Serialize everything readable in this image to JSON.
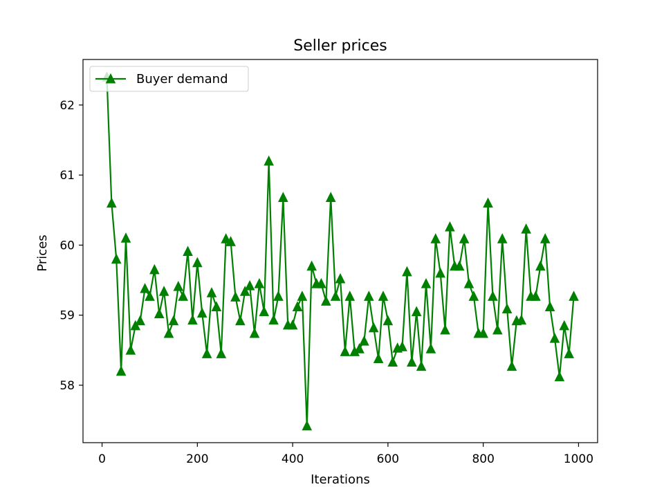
{
  "chart_data": {
    "type": "line",
    "title": "Seller prices",
    "xlabel": "Iterations",
    "ylabel": "Prices",
    "xlim": [
      -40,
      1040
    ],
    "ylim": [
      57.18,
      62.65
    ],
    "xticks": [
      0,
      200,
      400,
      600,
      800,
      1000
    ],
    "yticks": [
      58,
      59,
      60,
      61,
      62
    ],
    "grid": false,
    "legend_position": "top-left",
    "series": [
      {
        "name": "Buyer demand",
        "color": "#008000",
        "marker": "triangle-up",
        "x": [
          10,
          20,
          30,
          40,
          50,
          60,
          70,
          80,
          90,
          100,
          110,
          120,
          130,
          140,
          150,
          160,
          170,
          180,
          190,
          200,
          210,
          220,
          230,
          240,
          250,
          260,
          270,
          280,
          290,
          300,
          310,
          320,
          330,
          340,
          350,
          360,
          370,
          380,
          390,
          400,
          410,
          420,
          430,
          440,
          450,
          460,
          470,
          480,
          490,
          500,
          510,
          520,
          530,
          540,
          550,
          560,
          570,
          580,
          590,
          600,
          610,
          620,
          630,
          640,
          650,
          660,
          670,
          680,
          690,
          700,
          710,
          720,
          730,
          740,
          750,
          760,
          770,
          780,
          790,
          800,
          810,
          820,
          830,
          840,
          850,
          860,
          870,
          880,
          890,
          900,
          910,
          920,
          930,
          940,
          950,
          960,
          970,
          980,
          990
        ],
        "y": [
          62.4,
          60.6,
          59.8,
          58.2,
          60.1,
          58.5,
          58.85,
          58.92,
          59.38,
          59.27,
          59.65,
          59.02,
          59.34,
          58.74,
          58.92,
          59.41,
          59.27,
          59.91,
          58.93,
          59.75,
          59.03,
          58.45,
          59.32,
          59.12,
          58.45,
          60.09,
          60.05,
          59.26,
          58.92,
          59.34,
          59.42,
          58.74,
          59.45,
          59.05,
          61.2,
          58.93,
          59.27,
          60.68,
          58.86,
          58.86,
          59.12,
          59.27,
          57.42,
          59.7,
          59.45,
          59.45,
          59.2,
          60.68,
          59.27,
          59.52,
          58.48,
          59.27,
          58.48,
          58.52,
          58.63,
          59.27,
          58.82,
          58.38,
          59.27,
          58.92,
          58.33,
          58.53,
          58.55,
          59.62,
          58.33,
          59.05,
          58.27,
          59.45,
          58.52,
          60.09,
          59.6,
          58.79,
          60.26,
          59.7,
          59.7,
          60.09,
          59.45,
          59.27,
          58.74,
          58.74,
          60.6,
          59.27,
          58.79,
          60.09,
          59.09,
          58.27,
          58.92,
          58.93,
          60.23,
          59.27,
          59.27,
          59.7,
          60.09,
          59.12,
          58.67,
          58.12,
          58.85,
          58.45,
          59.27
        ]
      }
    ]
  }
}
